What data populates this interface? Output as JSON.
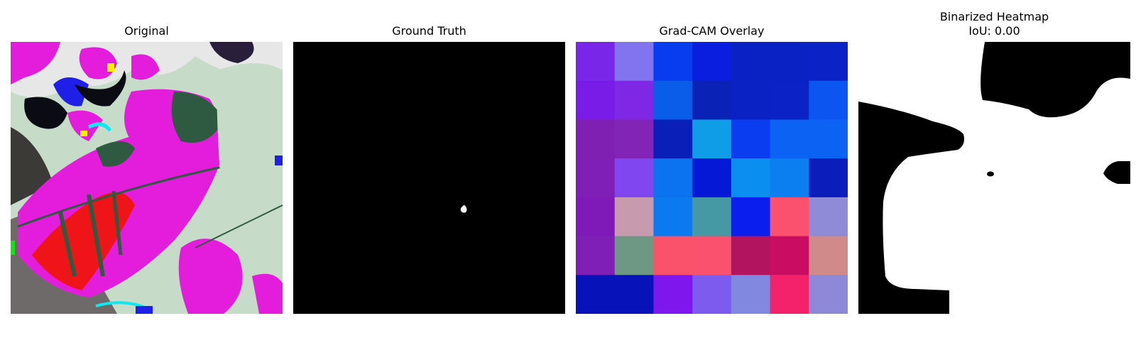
{
  "figure": {
    "panels": [
      {
        "title": "Original"
      },
      {
        "title": "Ground Truth"
      },
      {
        "title": "Grad-CAM Overlay"
      },
      {
        "title_lines": [
          "Binarized Heatmap",
          "IoU: 0.00"
        ]
      }
    ]
  },
  "colors": {
    "background": "#ffffff",
    "mask_foreground": "#ffffff",
    "mask_background": "#000000"
  },
  "gradcam_grid": [
    [
      "#7a26e8",
      "#8273ef",
      "#073dee",
      "#0a1ee0",
      "#0a22c4",
      "#0a22c4",
      "#0b22c6"
    ],
    [
      "#7a1ce8",
      "#7e28e6",
      "#0a5de9",
      "#0a22b6",
      "#0a22c4",
      "#0b22c6",
      "#0d55f0"
    ],
    [
      "#8020b3",
      "#8224b5",
      "#0a1eb8",
      "#0f9de8",
      "#0a3df0",
      "#0c62f2",
      "#0c62f2"
    ],
    [
      "#7f1fb6",
      "#8047f0",
      "#0b72f0",
      "#0518d6",
      "#0a8ef0",
      "#0b7ff0",
      "#0b1ebc"
    ],
    [
      "#7f1ab9",
      "#c79aae",
      "#0b7af0",
      "#4499a4",
      "#0a1fee",
      "#fb516e",
      "#8f8bd6"
    ],
    [
      "#7f1fb6",
      "#6e9884",
      "#fa526b",
      "#fa526e",
      "#b2145f",
      "#c90d63",
      "#d18a8a"
    ],
    [
      "#0713b9",
      "#0713b9",
      "#7e17ee",
      "#7c5bee",
      "#8188e0",
      "#f4226a",
      "#8d88d8"
    ]
  ]
}
